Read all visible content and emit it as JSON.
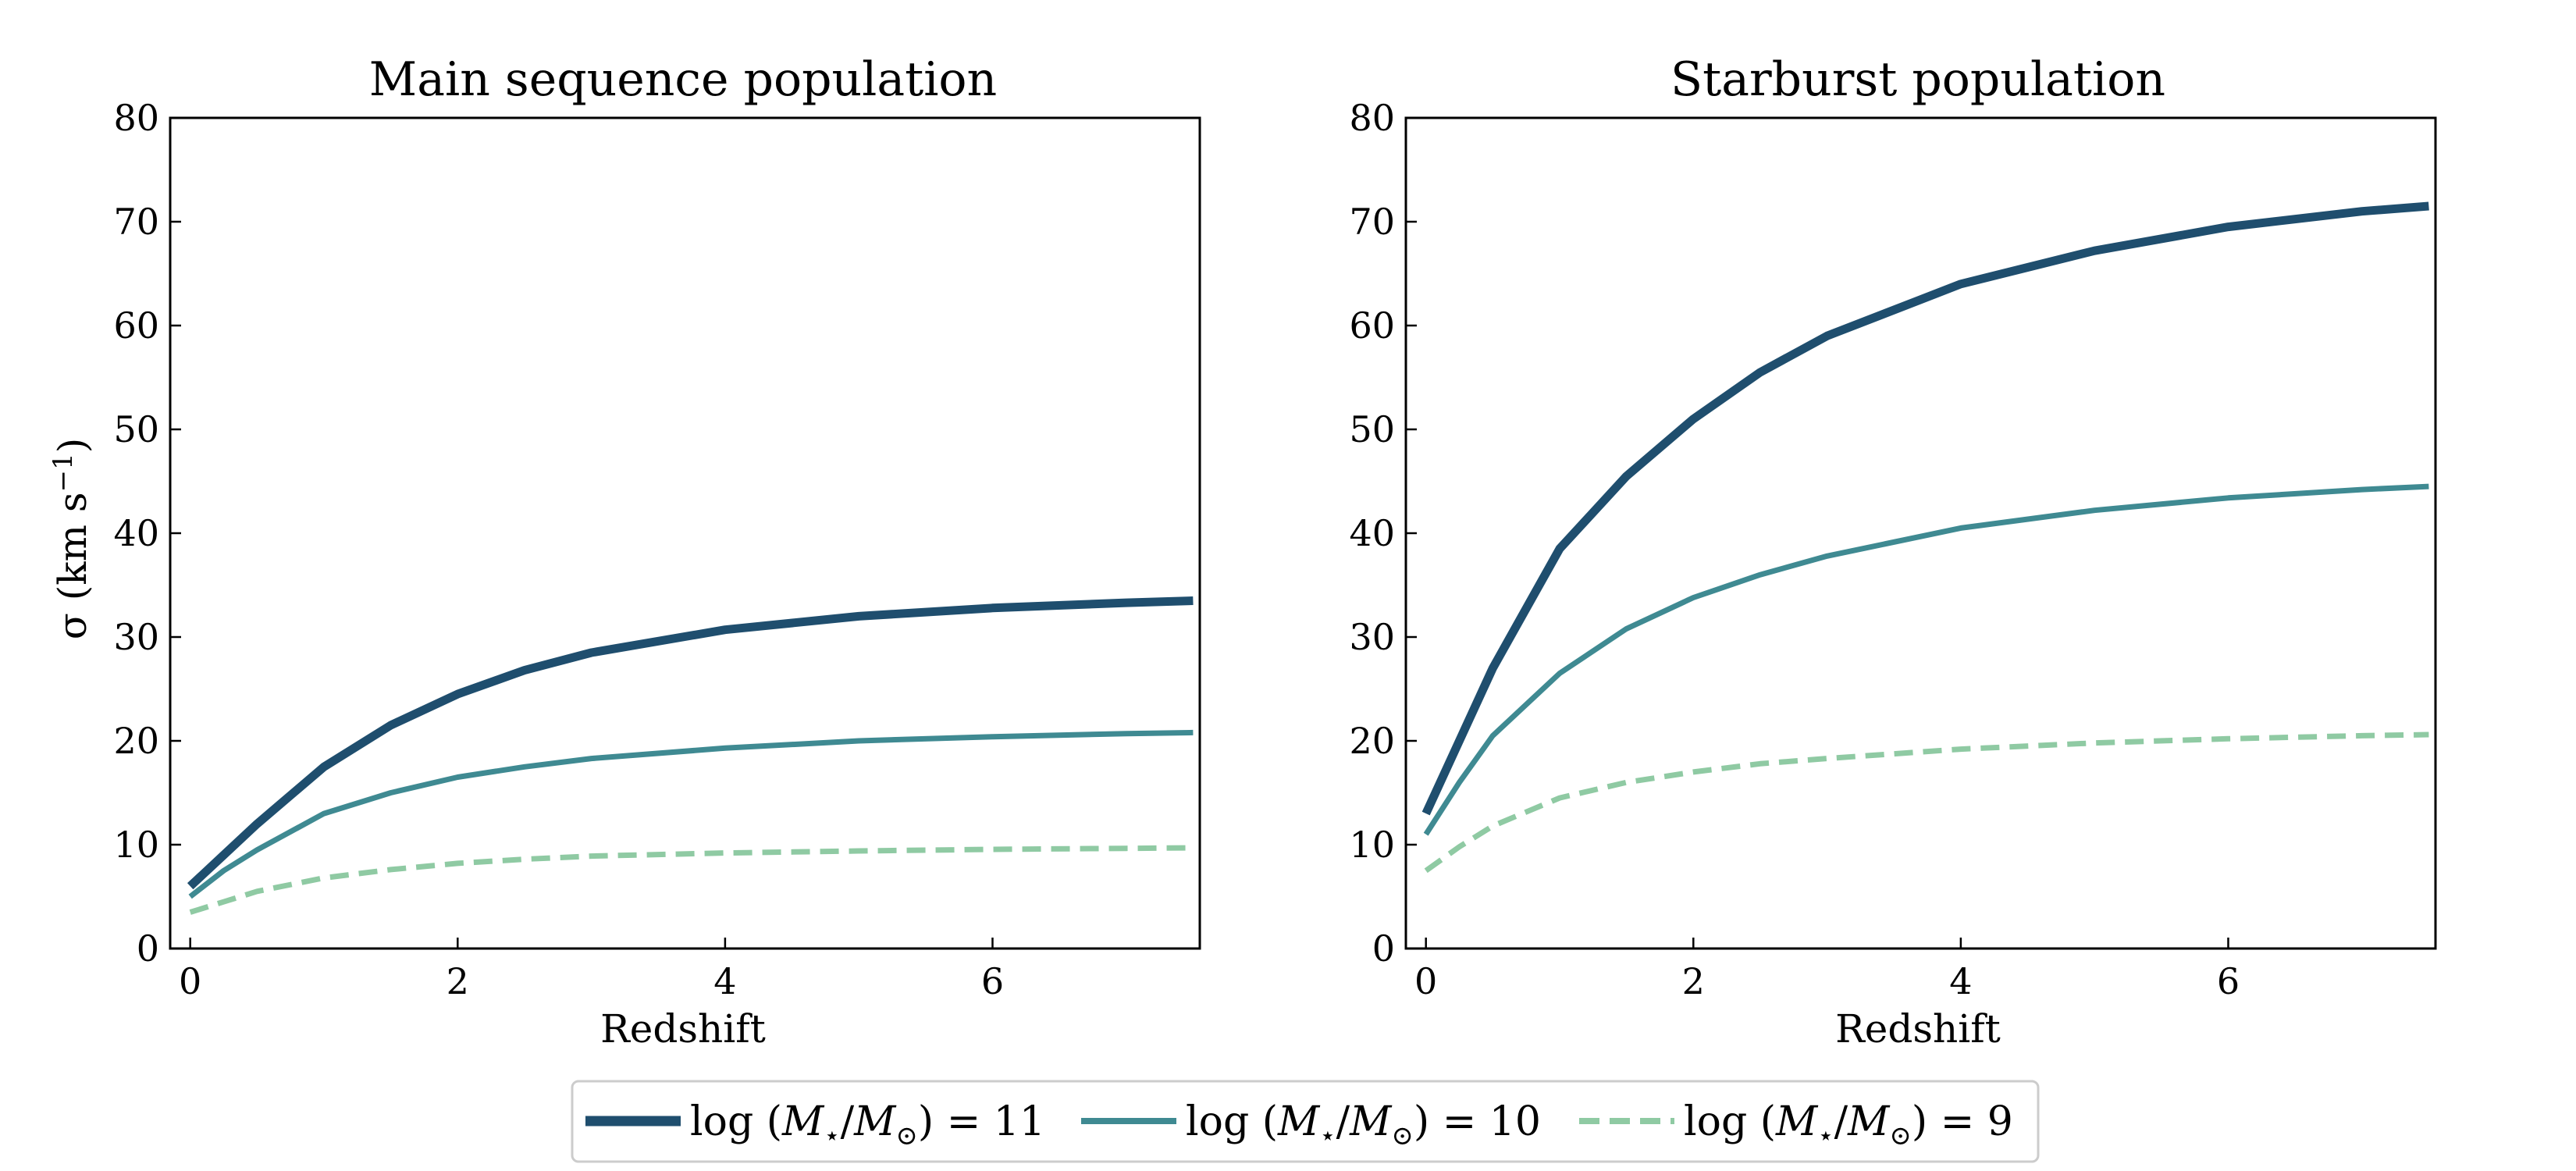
{
  "chart_data": [
    {
      "type": "line",
      "title": "Main sequence population",
      "xlabel": "Redshift",
      "ylabel": "σ (km s⁻¹)",
      "xlim": [
        -0.15,
        7.55
      ],
      "ylim": [
        0,
        80
      ],
      "xticks": [
        0,
        2,
        4,
        6
      ],
      "yticks": [
        0,
        10,
        20,
        30,
        40,
        50,
        60,
        70,
        80
      ],
      "x": [
        0,
        0.25,
        0.5,
        1,
        1.5,
        2,
        2.5,
        3,
        4,
        5,
        6,
        7,
        7.5
      ],
      "series": [
        {
          "name": "log (M⋆/M⊙) = 11",
          "values": [
            6.0,
            9.0,
            12.0,
            17.5,
            21.5,
            24.5,
            26.8,
            28.5,
            30.7,
            32.0,
            32.8,
            33.3,
            33.5
          ]
        },
        {
          "name": "log (M⋆/M⊙) = 10",
          "values": [
            5.0,
            7.5,
            9.5,
            13.0,
            15.0,
            16.5,
            17.5,
            18.3,
            19.3,
            20.0,
            20.4,
            20.7,
            20.8
          ]
        },
        {
          "name": "log (M⋆/M⊙) = 9",
          "values": [
            3.5,
            4.5,
            5.5,
            6.8,
            7.6,
            8.2,
            8.6,
            8.9,
            9.2,
            9.4,
            9.55,
            9.65,
            9.7
          ]
        }
      ]
    },
    {
      "type": "line",
      "title": "Starburst population",
      "xlabel": "Redshift",
      "ylabel": "",
      "xlim": [
        -0.15,
        7.55
      ],
      "ylim": [
        0,
        80
      ],
      "xticks": [
        0,
        2,
        4,
        6
      ],
      "yticks": [
        0,
        10,
        20,
        30,
        40,
        50,
        60,
        70,
        80
      ],
      "x": [
        0,
        0.25,
        0.5,
        1,
        1.5,
        2,
        2.5,
        3,
        4,
        5,
        6,
        7,
        7.5
      ],
      "series": [
        {
          "name": "log (M⋆/M⊙) = 11",
          "values": [
            13.0,
            20.0,
            27.0,
            38.5,
            45.5,
            51.0,
            55.5,
            59.0,
            64.0,
            67.2,
            69.5,
            71.0,
            71.5
          ]
        },
        {
          "name": "log (M⋆/M⊙) = 10",
          "values": [
            11.0,
            16.0,
            20.5,
            26.5,
            30.8,
            33.8,
            36.0,
            37.8,
            40.5,
            42.2,
            43.4,
            44.2,
            44.5
          ]
        },
        {
          "name": "log (M⋆/M⊙) = 9",
          "values": [
            7.5,
            9.8,
            11.8,
            14.5,
            16.0,
            17.0,
            17.8,
            18.3,
            19.2,
            19.8,
            20.2,
            20.5,
            20.6
          ]
        }
      ]
    }
  ],
  "legend": {
    "placement": "bottom-center",
    "entries": [
      {
        "label": "log (M⋆/M⊙) = 11",
        "color": "#1f4e6e",
        "style": "solid-thick"
      },
      {
        "label": "log (M⋆/M⊙) = 10",
        "color": "#3f8a92",
        "style": "solid"
      },
      {
        "label": "log (M⋆/M⊙) = 9",
        "color": "#8fcaa3",
        "style": "dashed"
      }
    ]
  },
  "colors": {
    "series_11": "#1f4e6e",
    "series_10": "#3f8a92",
    "series_9": "#8fcaa3"
  }
}
